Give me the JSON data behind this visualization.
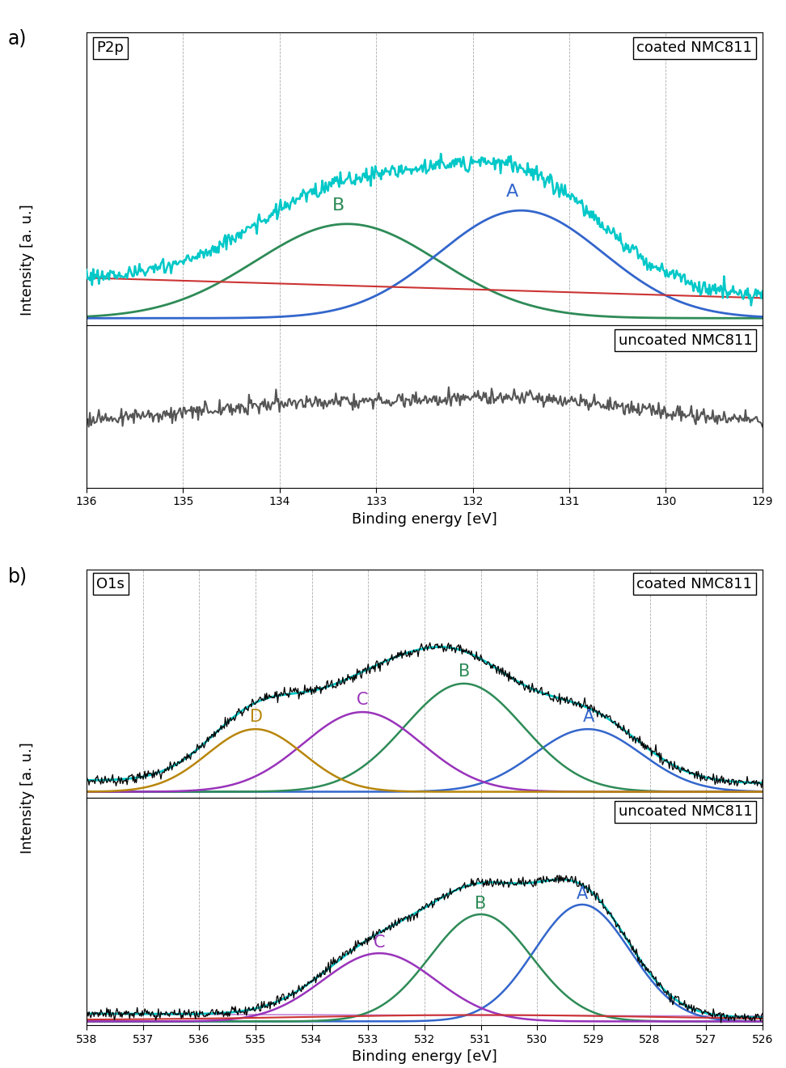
{
  "panel_a_xlabel": "Binding energy [eV]",
  "panel_a_ylabel": "Intensity [a. u.]",
  "panel_b_xlabel": "Binding energy [eV]",
  "panel_b_ylabel": "Intensity [a. u.]",
  "color_cyan": "#00C8C8",
  "color_green": "#2E8B57",
  "color_blue": "#3366CC",
  "color_red": "#CC3333",
  "color_dark_gray": "#555555",
  "color_gold": "#B8860B",
  "color_purple": "#9933BB",
  "fig_label_a": "a)",
  "fig_label_b": "b)",
  "panel_a_label": "P2p",
  "panel_b_label": "O1s",
  "coated_label": "coated NMC811",
  "uncoated_label": "uncoated NMC811"
}
